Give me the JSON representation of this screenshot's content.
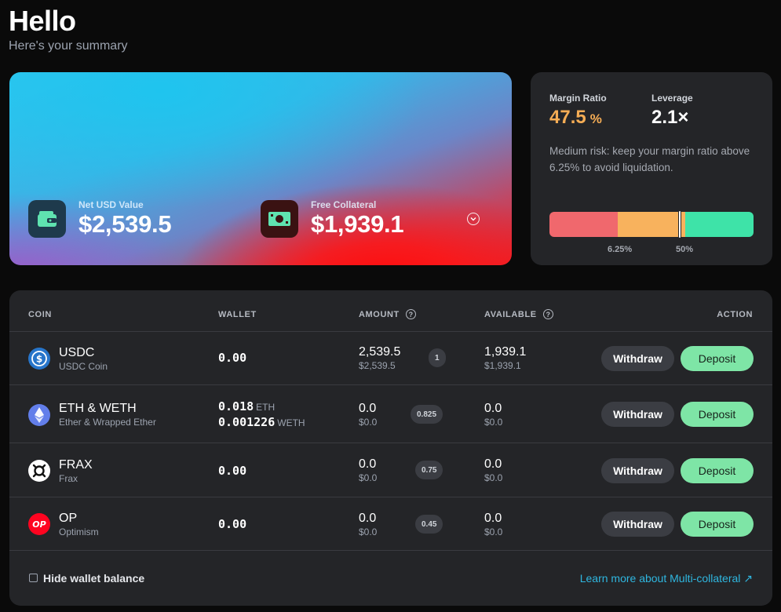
{
  "header": {
    "title": "Hello",
    "subtitle": "Here's your summary"
  },
  "summary": {
    "net_usd_label": "Net USD Value",
    "net_usd_value": "$2,539.5",
    "free_collateral_label": "Free Collateral",
    "free_collateral_value": "$1,939.1"
  },
  "risk": {
    "margin_ratio_label": "Margin Ratio",
    "margin_ratio_value": "47.5",
    "margin_ratio_unit": "%",
    "leverage_label": "Leverage",
    "leverage_value": "2.1×",
    "description": "Medium risk: keep your margin ratio above 6.25% to avoid liquidation.",
    "tick_1": "6.25%",
    "tick_2": "50%",
    "colors": {
      "high": "#f0686d",
      "medium": "#f8b25d",
      "low": "#3ee3a8"
    }
  },
  "table": {
    "columns": {
      "coin": "COIN",
      "wallet": "WALLET",
      "amount": "AMOUNT",
      "available": "AVAILABLE",
      "action": "ACTION"
    },
    "withdraw_label": "Withdraw",
    "deposit_label": "Deposit",
    "rows": [
      {
        "name": "USDC",
        "sub": "USDC Coin",
        "wallet": "0.00",
        "amount": "2,539.5",
        "amount_usd": "$2,539.5",
        "weight": "1",
        "available": "1,939.1",
        "available_usd": "$1,939.1",
        "icon": "usdc-icon",
        "color": "#2775ca"
      },
      {
        "name": "ETH & WETH",
        "sub": "Ether & Wrapped Ether",
        "wallet_1": "0.018",
        "wallet_1_unit": "ETH",
        "wallet_2": "0.001226",
        "wallet_2_unit": "WETH",
        "amount": "0.0",
        "amount_usd": "$0.0",
        "weight": "0.825",
        "available": "0.0",
        "available_usd": "$0.0",
        "icon": "eth-icon",
        "color": "#627eea"
      },
      {
        "name": "FRAX",
        "sub": "Frax",
        "wallet": "0.00",
        "amount": "0.0",
        "amount_usd": "$0.0",
        "weight": "0.75",
        "available": "0.0",
        "available_usd": "$0.0",
        "icon": "frax-icon",
        "color": "#ffffff"
      },
      {
        "name": "OP",
        "sub": "Optimism",
        "wallet": "0.00",
        "amount": "0.0",
        "amount_usd": "$0.0",
        "weight": "0.45",
        "available": "0.0",
        "available_usd": "$0.0",
        "icon": "op-icon",
        "color": "#ff0420"
      }
    ]
  },
  "footer": {
    "hide_wallet_label": "Hide wallet balance",
    "learn_more_label": "Learn more about Multi-collateral ↗"
  }
}
